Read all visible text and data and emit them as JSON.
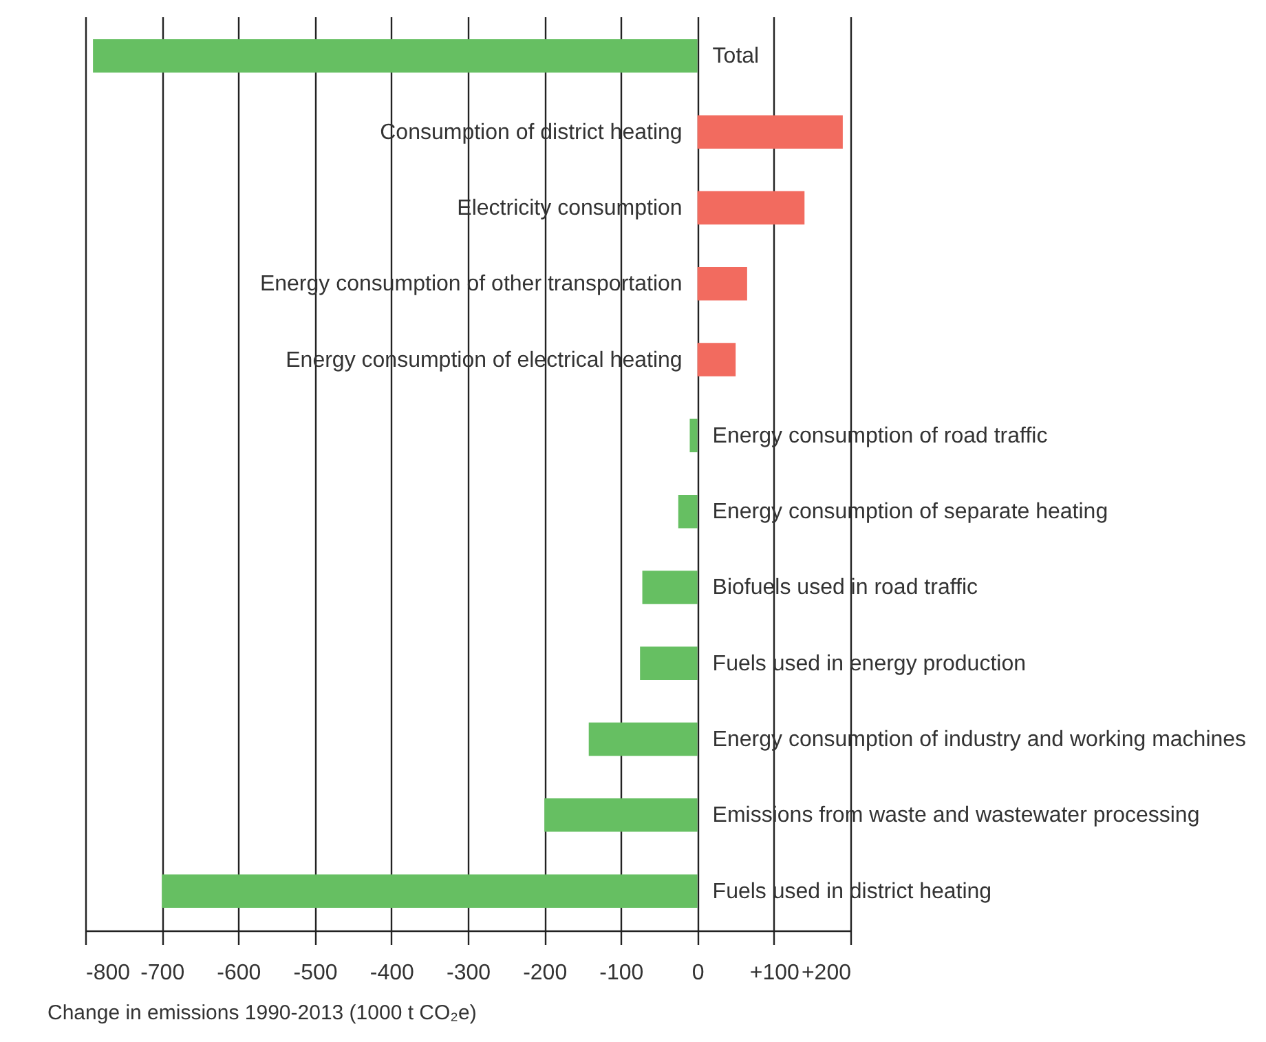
{
  "chart_data": {
    "type": "bar",
    "orientation": "horizontal",
    "categories": [
      "Total",
      "Consumption of district heating",
      "Electricity consumption",
      "Energy consumption of other transportation",
      "Energy consumption of electrical heating",
      "Energy consumption of road traffic",
      "Energy consumption of separate heating",
      "Biofuels used in road traffic",
      "Fuels used in energy production",
      "Energy consumption of industry and working machines",
      "Emissions from waste and wastewater processing",
      "Fuels used in district heating"
    ],
    "values": [
      -790,
      190,
      140,
      65,
      50,
      -10,
      -25,
      -72,
      -75,
      -142,
      -200,
      -700
    ],
    "colors": [
      "#66bf62",
      "#f26b5f",
      "#f26b5f",
      "#f26b5f",
      "#f26b5f",
      "#66bf62",
      "#66bf62",
      "#66bf62",
      "#66bf62",
      "#66bf62",
      "#66bf62",
      "#66bf62"
    ],
    "xlim": [
      -800,
      200
    ],
    "xticks": [
      -800,
      -700,
      -600,
      -500,
      -400,
      -300,
      -200,
      -100,
      0,
      {
        "value": 100,
        "label": "+100"
      },
      {
        "value": 200,
        "label": "+200"
      }
    ],
    "xlabel": "Change in emissions 1990-2013 (1000 t CO₂e)",
    "grid": "x"
  }
}
